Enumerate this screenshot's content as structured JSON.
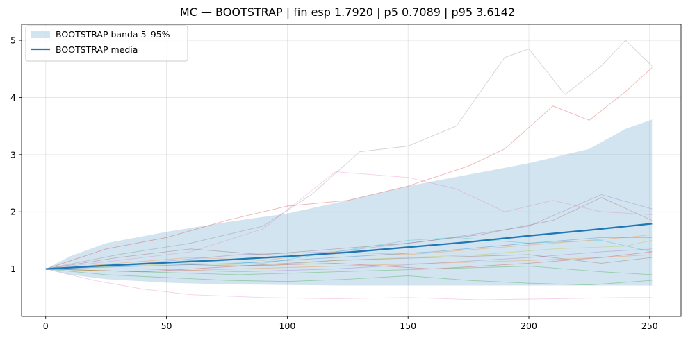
{
  "chart_data": {
    "type": "line",
    "title": "MC — BOOTSTRAP | fin esp 1.7920 | p5 0.7089 | p95 3.6142",
    "xlabel": "",
    "ylabel": "",
    "xlim": [
      -10,
      263
    ],
    "ylim": [
      0.17,
      5.28
    ],
    "x_ticks": [
      0,
      50,
      100,
      150,
      200,
      250
    ],
    "x_tick_labels": [
      "0",
      "50",
      "100",
      "150",
      "200",
      "250"
    ],
    "y_ticks": [
      1,
      2,
      3,
      4,
      5
    ],
    "y_tick_labels": [
      "1",
      "2",
      "3",
      "4",
      "5"
    ],
    "grid": true,
    "legend": {
      "placement": "upper-left",
      "entries": [
        {
          "label": "BOOTSTRAP banda 5–95%",
          "kind": "band",
          "color": "#1f77b4"
        },
        {
          "label": "BOOTSTRAP media",
          "kind": "line",
          "color": "#1f77b4"
        }
      ]
    },
    "mean": {
      "name": "BOOTSTRAP media",
      "color": "#1f77b4",
      "x": [
        0,
        25,
        50,
        75,
        100,
        125,
        150,
        175,
        200,
        225,
        251
      ],
      "y": [
        1.0,
        1.06,
        1.11,
        1.16,
        1.22,
        1.29,
        1.38,
        1.47,
        1.58,
        1.68,
        1.792
      ]
    },
    "band": {
      "name": "BOOTSTRAP banda 5–95%",
      "color": "#1f77b4",
      "x": [
        0,
        10,
        25,
        50,
        75,
        100,
        125,
        150,
        175,
        200,
        225,
        240,
        251
      ],
      "low": [
        1.0,
        0.9,
        0.82,
        0.76,
        0.73,
        0.72,
        0.71,
        0.71,
        0.71,
        0.71,
        0.71,
        0.71,
        0.709
      ],
      "high": [
        1.0,
        1.22,
        1.45,
        1.65,
        1.82,
        1.97,
        2.2,
        2.45,
        2.65,
        2.85,
        3.1,
        3.45,
        3.614
      ]
    },
    "paths": [
      {
        "color": "#7f7f7f",
        "x": [
          0,
          30,
          60,
          90,
          110,
          130,
          150,
          170,
          190,
          200,
          215,
          230,
          240,
          251
        ],
        "y": [
          1.0,
          1.25,
          1.45,
          1.75,
          2.3,
          3.05,
          3.15,
          3.5,
          4.7,
          4.85,
          4.05,
          4.55,
          5.0,
          4.55
        ]
      },
      {
        "color": "#d62728",
        "x": [
          0,
          25,
          50,
          75,
          100,
          125,
          150,
          175,
          190,
          210,
          225,
          240,
          251
        ],
        "y": [
          1.0,
          1.35,
          1.55,
          1.85,
          2.1,
          2.2,
          2.45,
          2.8,
          3.1,
          3.85,
          3.6,
          4.1,
          4.52
        ]
      },
      {
        "color": "#e377c2",
        "x": [
          0,
          30,
          60,
          90,
          120,
          150,
          170,
          190,
          210,
          230,
          251
        ],
        "y": [
          1.0,
          1.15,
          1.3,
          1.7,
          2.7,
          2.6,
          2.4,
          2.0,
          2.2,
          2.0,
          1.95
        ]
      },
      {
        "color": "#9467bd",
        "x": [
          0,
          40,
          80,
          120,
          160,
          200,
          230,
          251
        ],
        "y": [
          1.0,
          1.1,
          1.25,
          1.3,
          1.5,
          1.75,
          2.3,
          2.05
        ]
      },
      {
        "color": "#8c564b",
        "x": [
          0,
          30,
          60,
          90,
          120,
          150,
          180,
          210,
          230,
          251
        ],
        "y": [
          1.0,
          1.2,
          1.35,
          1.25,
          1.35,
          1.45,
          1.6,
          1.85,
          2.25,
          1.85
        ]
      },
      {
        "color": "#17becf",
        "x": [
          0,
          30,
          60,
          90,
          120,
          150,
          170,
          200,
          230,
          251
        ],
        "y": [
          1.0,
          1.05,
          1.15,
          1.1,
          1.3,
          1.5,
          1.55,
          1.45,
          1.5,
          1.3
        ]
      },
      {
        "color": "#2ca02c",
        "x": [
          0,
          25,
          50,
          75,
          100,
          125,
          150,
          175,
          200,
          225,
          251
        ],
        "y": [
          1.0,
          0.9,
          0.85,
          0.8,
          0.78,
          0.82,
          0.88,
          0.8,
          0.75,
          0.72,
          0.8
        ]
      },
      {
        "color": "#ff7f0e",
        "x": [
          0,
          30,
          60,
          90,
          120,
          150,
          180,
          210,
          240,
          251
        ],
        "y": [
          1.0,
          1.1,
          1.2,
          1.15,
          1.3,
          1.25,
          1.35,
          1.45,
          1.55,
          1.6
        ]
      },
      {
        "color": "#bcbd22",
        "x": [
          0,
          30,
          60,
          90,
          120,
          150,
          180,
          210,
          240,
          251
        ],
        "y": [
          1.0,
          1.05,
          1.1,
          1.05,
          1.15,
          1.2,
          1.25,
          1.35,
          1.4,
          1.5
        ]
      },
      {
        "color": "#e377c2",
        "x": [
          0,
          20,
          40,
          60,
          90,
          120,
          150,
          180,
          210,
          240,
          251
        ],
        "y": [
          1.0,
          0.8,
          0.65,
          0.55,
          0.5,
          0.48,
          0.5,
          0.46,
          0.48,
          0.5,
          0.5
        ]
      },
      {
        "color": "#1f77b4",
        "x": [
          0,
          40,
          80,
          120,
          160,
          200,
          230,
          251
        ],
        "y": [
          1.0,
          1.05,
          1.1,
          1.2,
          1.3,
          1.45,
          1.55,
          1.55
        ]
      },
      {
        "color": "#d62728",
        "x": [
          0,
          40,
          80,
          120,
          160,
          200,
          230,
          251
        ],
        "y": [
          1.0,
          0.95,
          1.05,
          1.1,
          1.0,
          1.1,
          1.2,
          1.3
        ]
      },
      {
        "color": "#9467bd",
        "x": [
          0,
          40,
          80,
          120,
          160,
          200,
          230,
          251
        ],
        "y": [
          1.0,
          1.0,
          0.95,
          1.0,
          1.1,
          1.2,
          1.3,
          1.35
        ]
      },
      {
        "color": "#2ca02c",
        "x": [
          0,
          40,
          80,
          120,
          160,
          200,
          230,
          251
        ],
        "y": [
          1.0,
          0.95,
          0.9,
          0.95,
          1.0,
          1.05,
          0.95,
          0.9
        ]
      },
      {
        "color": "#8c564b",
        "x": [
          0,
          40,
          80,
          120,
          160,
          200,
          230,
          251
        ],
        "y": [
          1.0,
          1.1,
          1.05,
          1.15,
          1.2,
          1.25,
          1.1,
          1.2
        ]
      },
      {
        "color": "#ff7f0e",
        "x": [
          0,
          40,
          80,
          120,
          160,
          200,
          230,
          251
        ],
        "y": [
          1.0,
          0.95,
          1.0,
          1.05,
          1.1,
          1.15,
          1.2,
          1.25
        ]
      }
    ]
  }
}
